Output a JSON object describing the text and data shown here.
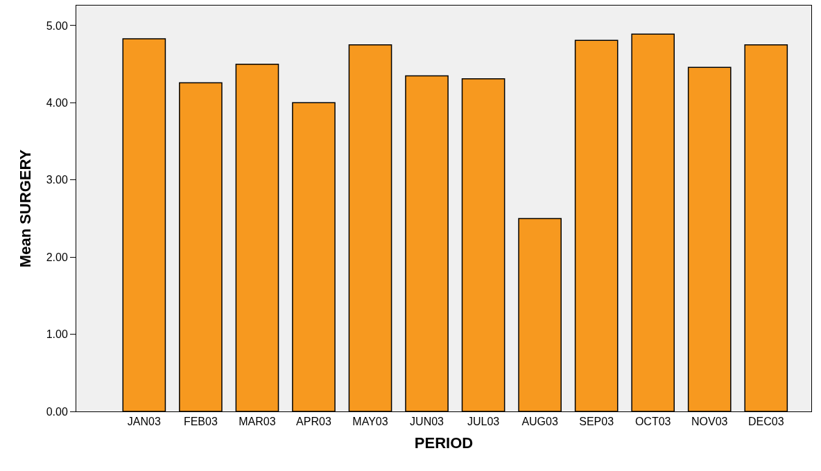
{
  "chart_data": {
    "type": "bar",
    "xlabel": "PERIOD",
    "ylabel": "Mean SURGERY",
    "categories": [
      "JAN03",
      "FEB03",
      "MAR03",
      "APR03",
      "MAY03",
      "JUN03",
      "JUL03",
      "AUG03",
      "SEP03",
      "OCT03",
      "NOV03",
      "DEC03"
    ],
    "values": [
      4.83,
      4.26,
      4.5,
      4.0,
      4.75,
      4.35,
      4.31,
      2.5,
      4.81,
      4.89,
      4.46,
      4.75
    ],
    "color": "#f7991f",
    "ylim": [
      0,
      5.26
    ],
    "yticks": [
      {
        "value": 0,
        "label": "0.00"
      },
      {
        "value": 1,
        "label": "1.00"
      },
      {
        "value": 2,
        "label": "2.00"
      },
      {
        "value": 3,
        "label": "3.00"
      },
      {
        "value": 4,
        "label": "4.00"
      },
      {
        "value": 5,
        "label": "5.00"
      }
    ],
    "grid": false
  }
}
